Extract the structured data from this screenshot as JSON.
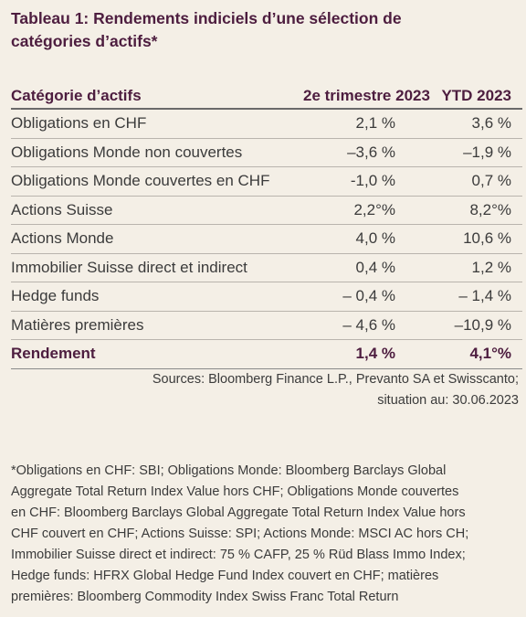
{
  "title": [
    "Tableau 1: Rendements indiciels d’une sélection de",
    "catégories d’actifs*"
  ],
  "table": {
    "header": [
      "Catégorie d’actifs",
      "2e trimestre 2023",
      "YTD 2023"
    ],
    "rows": [
      [
        "Obligations en CHF",
        "2,1 %",
        "3,6 %"
      ],
      [
        "Obligations Monde non couvertes",
        "–3,6 %",
        "–1,9 %"
      ],
      [
        "Obligations Monde couvertes en CHF",
        "-1,0 %",
        "0,7 %"
      ],
      [
        "Actions Suisse",
        "2,2°%",
        "8,2°%"
      ],
      [
        "Actions Monde",
        "4,0 %",
        "10,6 %"
      ],
      [
        "Immobilier Suisse direct et indirect",
        "0,4 %",
        "1,2 %"
      ],
      [
        "Hedge funds",
        "– 0,4 %",
        "– 1,4 %"
      ],
      [
        "Matières premières",
        "– 4,6 %",
        "–10,9 %"
      ]
    ],
    "total": [
      "Rendement",
      "1,4 %",
      "4,1°%"
    ]
  },
  "sources": [
    "Sources: Bloomberg Finance L.P., Prevanto SA et Swisscanto;",
    "situation au: 30.06.2023"
  ],
  "footnote": [
    "*Obligations en CHF: SBI; Obligations Monde: Bloomberg Barclays Global",
    "Aggregate Total Return Index Value hors CHF; Obligations Monde couvertes",
    "en CHF: Bloomberg Barclays Global Aggregate Total Return Index Value hors",
    "CHF couvert en CHF; Actions Suisse: SPI; Actions Monde: MSCI AC hors CH;",
    "Immobilier Suisse direct et indirect: 75 % CAFP, 25 % Rüd Blass Immo Index;",
    "Hedge funds: HFRX Global Hedge Fund Index couvert en CHF; matières",
    "premières: Bloomberg Commodity Index Swiss Franc Total Return"
  ]
}
